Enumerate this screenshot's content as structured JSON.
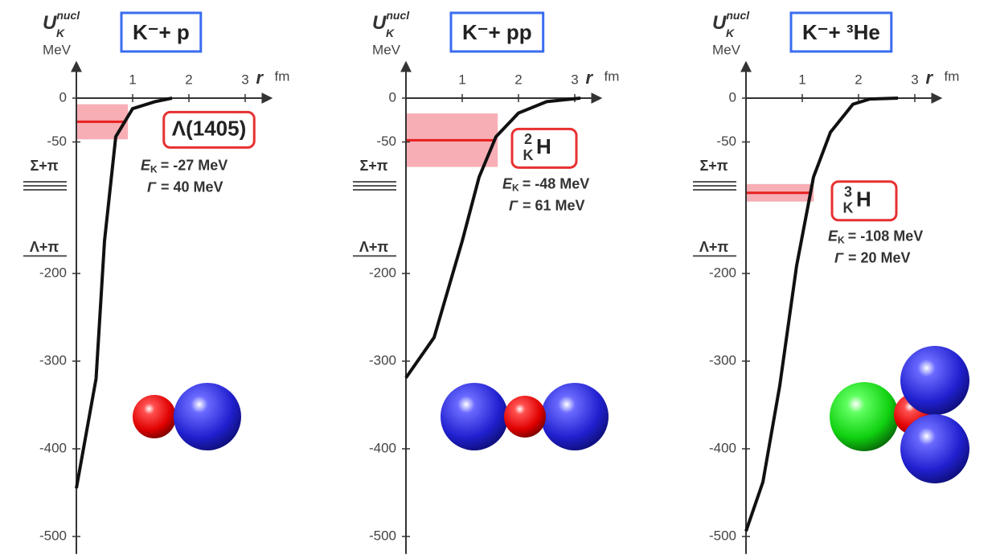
{
  "chart_data": [
    {
      "type": "line",
      "title": "K⁻+ p",
      "y_label": {
        "symbol": "U",
        "sub": "K",
        "sup": "nucl",
        "unit": "MeV"
      },
      "x_label": {
        "symbol": "r",
        "unit": "fm"
      },
      "x": [
        0,
        0.35,
        0.5,
        0.7,
        1,
        1.4,
        1.7
      ],
      "values": [
        -445,
        -320,
        -163,
        -44,
        -12,
        -4,
        0
      ],
      "xlim": [
        0,
        3.45
      ],
      "ylim": [
        -520,
        40
      ],
      "xticks": [
        1,
        2,
        3
      ],
      "yticks": [
        0,
        -50,
        -200,
        -300,
        -400,
        -500
      ],
      "thresholds": [
        {
          "label": "Σ+π",
          "value": -100
        },
        {
          "label": "Λ+π",
          "value": -180
        }
      ],
      "state_label": {
        "text": "Λ(1405)"
      },
      "energy": -27,
      "width": 40,
      "energy_label": {
        "symbol": "E",
        "sub": "K",
        "text": "= -27 MeV"
      },
      "width_label": {
        "symbol": "Γ",
        "text": "= 40 MeV"
      }
    },
    {
      "type": "line",
      "title": "K⁻+ pp",
      "y_label": {
        "symbol": "U",
        "sub": "K",
        "sup": "nucl",
        "unit": "MeV"
      },
      "x_label": {
        "symbol": "r",
        "unit": "fm"
      },
      "x": [
        0,
        0.5,
        1,
        1.3,
        1.6,
        2,
        2.5,
        3.1
      ],
      "values": [
        -319,
        -273,
        -163,
        -90,
        -44,
        -17,
        -4,
        0
      ],
      "xlim": [
        0,
        3.45
      ],
      "ylim": [
        -520,
        40
      ],
      "xticks": [
        1,
        2,
        3
      ],
      "yticks": [
        0,
        -50,
        -200,
        -300,
        -400,
        -500
      ],
      "thresholds": [
        {
          "label": "Σ+π",
          "value": -100
        },
        {
          "label": "Λ+π",
          "value": -180
        }
      ],
      "state_label": {
        "sup": "2",
        "sub": "K",
        "text": "H"
      },
      "energy": -48,
      "width": 61,
      "energy_label": {
        "symbol": "E",
        "sub": "K",
        "text": "= -48 MeV"
      },
      "width_label": {
        "symbol": "Γ",
        "text": "= 61 MeV"
      }
    },
    {
      "type": "line",
      "title": "K⁻+ ³He",
      "y_label": {
        "symbol": "U",
        "sub": "K",
        "sup": "nucl",
        "unit": "MeV"
      },
      "x_label": {
        "symbol": "r",
        "unit": "fm"
      },
      "x": [
        0,
        0.3,
        0.6,
        0.9,
        1.2,
        1.5,
        1.9,
        2.2,
        2.7
      ],
      "values": [
        -494,
        -438,
        -328,
        -191,
        -90,
        -39,
        -7,
        -1,
        0
      ],
      "xlim": [
        0,
        3.45
      ],
      "ylim": [
        -520,
        40
      ],
      "xticks": [
        1,
        2,
        3
      ],
      "yticks": [
        0,
        -50,
        -200,
        -300,
        -400,
        -500
      ],
      "thresholds": [
        {
          "label": "Σ+π",
          "value": -100
        },
        {
          "label": "Λ+π",
          "value": -180
        }
      ],
      "state_label": {
        "sup": "3",
        "sub": "K",
        "text": "H"
      },
      "energy": -108,
      "width": 20,
      "energy_label": {
        "symbol": "E",
        "sub": "K",
        "text": "= -108 MeV"
      },
      "width_label": {
        "symbol": "Γ",
        "text": "= 20 MeV"
      }
    }
  ]
}
